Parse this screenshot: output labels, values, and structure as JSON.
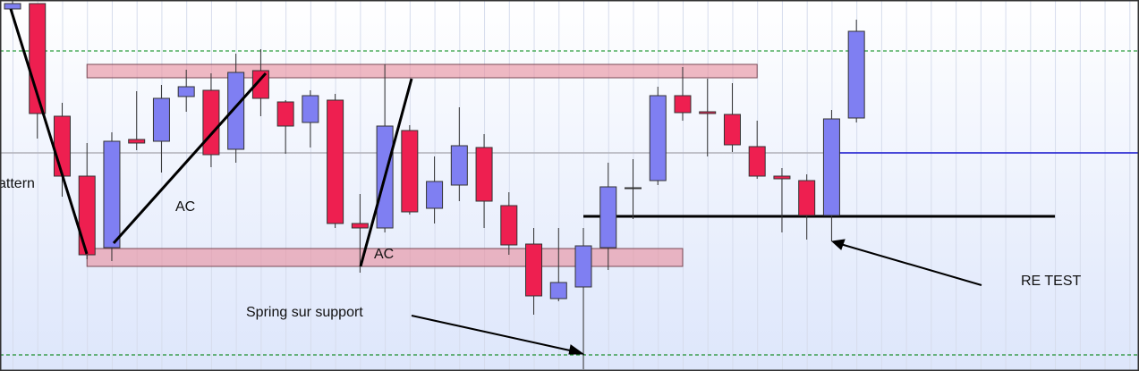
{
  "chart_data": {
    "type": "candlestick",
    "open": [
      405,
      411,
      285,
      218,
      138,
      259,
      257,
      307,
      314,
      248,
      336,
      301,
      278,
      303,
      165,
      160,
      269,
      182,
      208,
      250,
      185,
      142,
      81,
      94,
      138,
      204,
      213,
      308,
      290,
      287,
      251,
      218,
      213,
      174,
      283
    ],
    "high": [
      415,
      411,
      300,
      255,
      267,
      313,
      320,
      337,
      333,
      355,
      360,
      303,
      314,
      310,
      198,
      343,
      275,
      240,
      295,
      265,
      200,
      160,
      160,
      160,
      233,
      237,
      318,
      340,
      327,
      322,
      280,
      227,
      220,
      292,
      393
    ],
    "low": [
      405,
      260,
      195,
      125,
      123,
      247,
      222,
      290,
      228,
      233,
      285,
      243,
      250,
      160,
      110,
      155,
      175,
      165,
      190,
      160,
      130,
      63,
      78,
      2,
      113,
      170,
      208,
      280,
      240,
      245,
      215,
      155,
      147,
      145,
      278
    ],
    "close": [
      411,
      288,
      218,
      130,
      257,
      255,
      305,
      318,
      242,
      334,
      305,
      274,
      308,
      165,
      160,
      274,
      178,
      212,
      252,
      190,
      141,
      84,
      99,
      140,
      206,
      205,
      308,
      289,
      288,
      253,
      218,
      215,
      174,
      282,
      380
    ],
    "up_color": "#7f7ff2",
    "down_color": "#ee1f50",
    "ylim": [
      0,
      415
    ],
    "zones": [
      {
        "top": 343,
        "bottom": 328,
        "start": 3,
        "end": 30
      },
      {
        "top": 137,
        "bottom": 117,
        "start": 3,
        "end": 27
      }
    ],
    "hlines": [
      {
        "value": 358,
        "color": "#2e9e3e",
        "dashed": true
      },
      {
        "value": 18,
        "color": "#1f8f2f",
        "dashed": true
      },
      {
        "value": 244,
        "color": "#b0b0b8",
        "dashed": false
      },
      {
        "value": 244,
        "color": "#1a1ad8",
        "dashed": false,
        "start": 33
      },
      {
        "value": 173,
        "color": "#000000",
        "dashed": false,
        "start": 23,
        "end": 42
      }
    ],
    "annotations": [
      "attern",
      "AC",
      "AC",
      "Spring sur support",
      "RE TEST"
    ]
  }
}
